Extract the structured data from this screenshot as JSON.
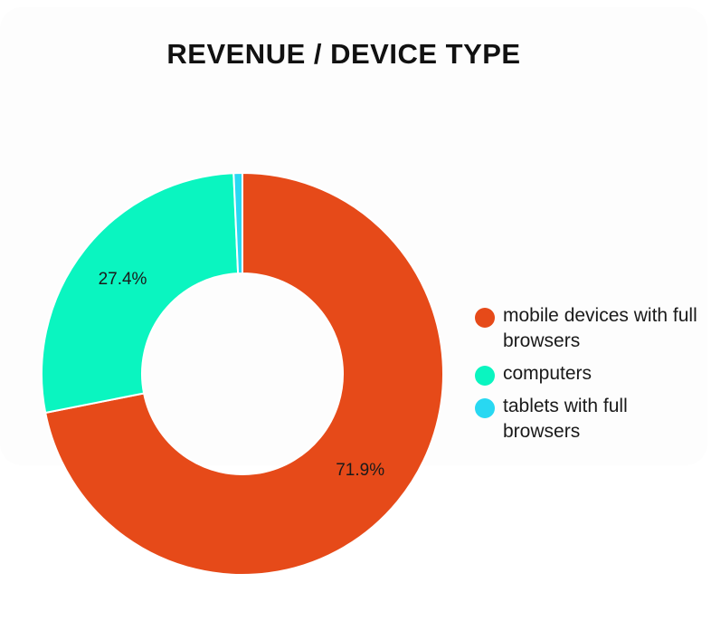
{
  "chart_data": {
    "type": "pie",
    "title": "REVENUE / DEVICE TYPE",
    "series": [
      {
        "name": "mobile devices with full browsers",
        "value": 71.9,
        "label": "71.9%",
        "color": "#e64a19"
      },
      {
        "name": "computers",
        "value": 27.4,
        "label": "27.4%",
        "color": "#0af5c0"
      },
      {
        "name": "tablets with full browsers",
        "value": 0.7,
        "label": "",
        "color": "#28d8f2"
      }
    ],
    "legend_position": "right",
    "donut": true
  }
}
